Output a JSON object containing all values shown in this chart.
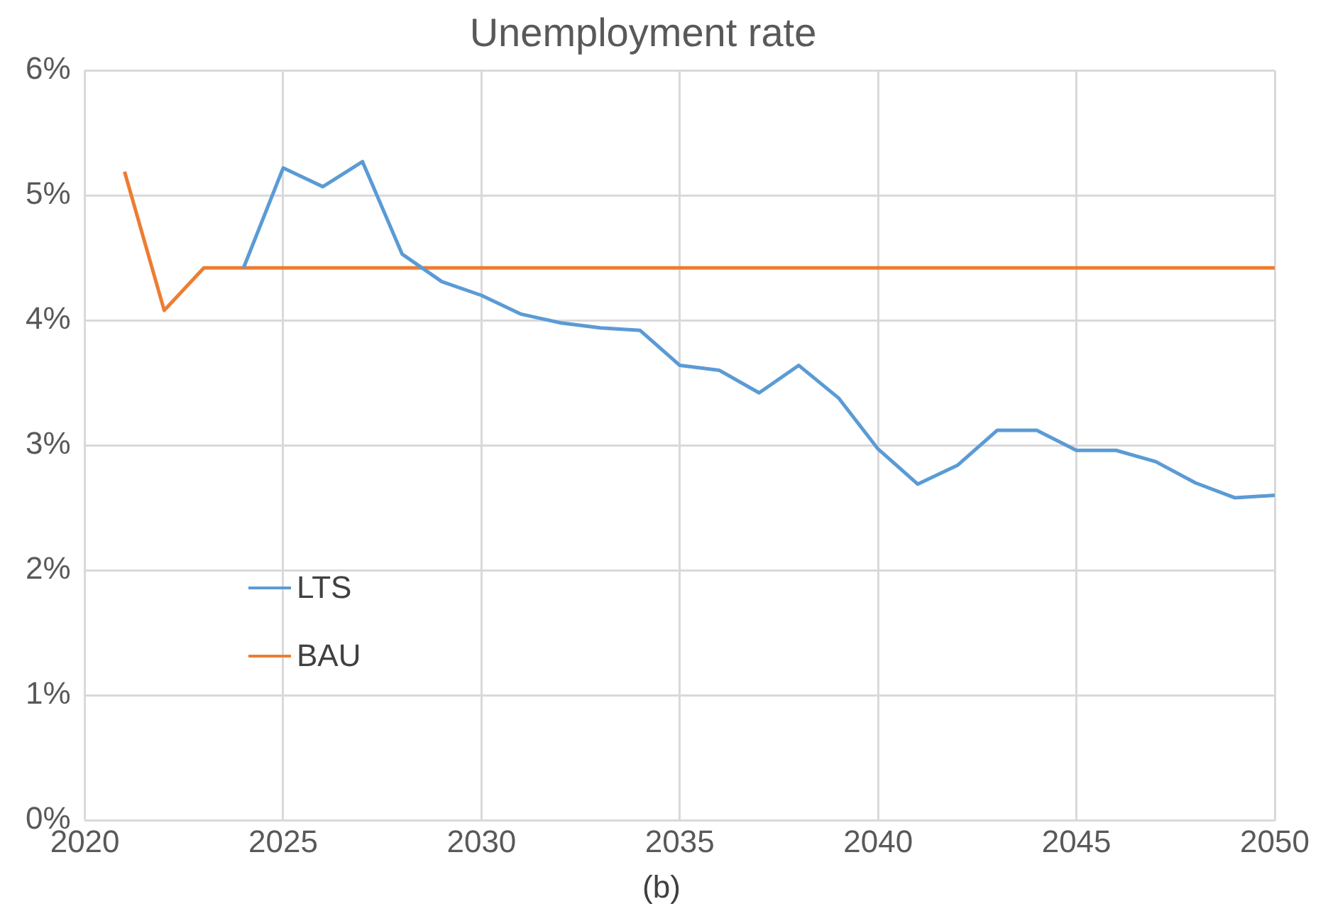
{
  "chart_data": {
    "type": "line",
    "title": "Unemployment rate",
    "annotations": [
      "(b)"
    ],
    "xlim": [
      2020,
      2050
    ],
    "xticks": [
      2020,
      2025,
      2030,
      2035,
      2040,
      2045,
      2050
    ],
    "ylim": [
      0,
      6
    ],
    "yticks": [
      {
        "value": 0,
        "label": "0%"
      },
      {
        "value": 1,
        "label": "1%"
      },
      {
        "value": 2,
        "label": "2%"
      },
      {
        "value": 3,
        "label": "3%"
      },
      {
        "value": 4,
        "label": "4%"
      },
      {
        "value": 5,
        "label": "5%"
      },
      {
        "value": 6,
        "label": "6%"
      }
    ],
    "grid": true,
    "legend": "left",
    "marker": "none",
    "line_style": "solid",
    "series": [
      {
        "name": "LTS",
        "color": "#5b9bd5",
        "x": [
          2024,
          2025,
          2026,
          2027,
          2028,
          2029,
          2030,
          2031,
          2032,
          2033,
          2034,
          2035,
          2036,
          2037,
          2038,
          2039,
          2040,
          2041,
          2042,
          2043,
          2044,
          2045,
          2046,
          2047,
          2048,
          2049,
          2050
        ],
        "values": [
          4.42,
          5.22,
          5.07,
          5.27,
          4.53,
          4.31,
          4.2,
          4.05,
          3.98,
          3.94,
          3.92,
          3.64,
          3.6,
          3.42,
          3.64,
          3.38,
          2.97,
          2.69,
          2.84,
          3.12,
          3.12,
          2.96,
          2.96,
          2.87,
          2.7,
          2.58,
          2.6
        ]
      },
      {
        "name": "BAU",
        "color": "#ed7d31",
        "x": [
          2021,
          2022,
          2023,
          2024,
          2025,
          2026,
          2027,
          2028,
          2029,
          2030,
          2031,
          2032,
          2033,
          2034,
          2035,
          2036,
          2037,
          2038,
          2039,
          2040,
          2041,
          2042,
          2043,
          2044,
          2045,
          2046,
          2047,
          2048,
          2049,
          2050
        ],
        "values": [
          5.19,
          4.08,
          4.42,
          4.42,
          4.42,
          4.42,
          4.42,
          4.42,
          4.42,
          4.42,
          4.42,
          4.42,
          4.42,
          4.42,
          4.42,
          4.42,
          4.42,
          4.42,
          4.42,
          4.42,
          4.42,
          4.42,
          4.42,
          4.42,
          4.42,
          4.42,
          4.42,
          4.42,
          4.42,
          4.42
        ]
      }
    ]
  }
}
